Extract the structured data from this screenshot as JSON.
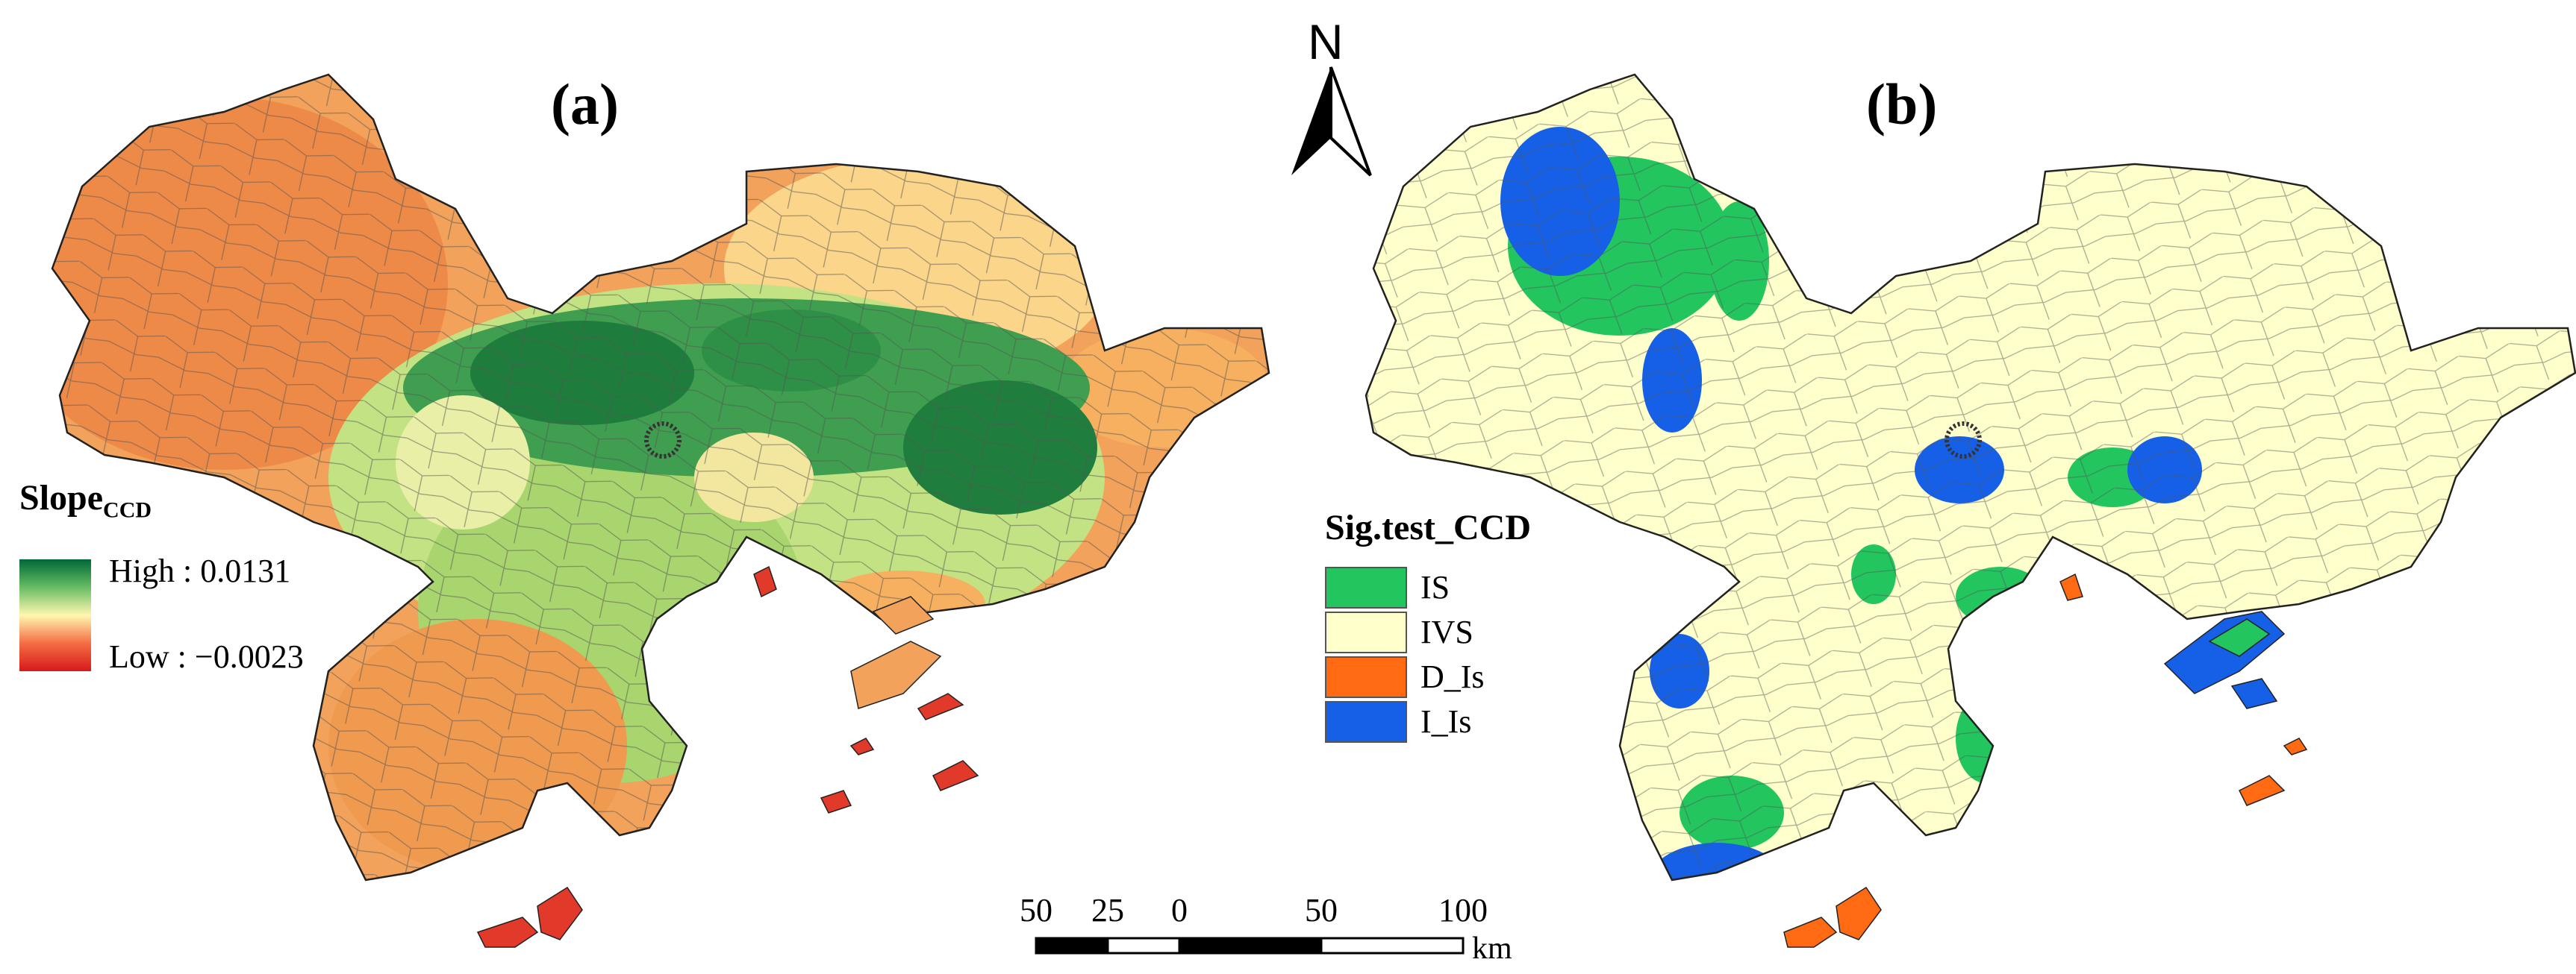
{
  "panels": [
    {
      "label": "(a)"
    },
    {
      "label": "(b)"
    }
  ],
  "north_arrow": {
    "label": "N"
  },
  "legend_a": {
    "title": "Slope",
    "title_subscript": "CCD",
    "high_label": "High : 0.0131",
    "low_label": "Low : −0.0023",
    "high_value": 0.0131,
    "low_value": -0.0023,
    "colors": [
      "#006837",
      "#66bd63",
      "#fee08b",
      "#f46d43",
      "#d7191c"
    ]
  },
  "legend_b": {
    "title": "Sig.test_CCD",
    "categories": [
      {
        "label": "IS",
        "color": "#22c55e"
      },
      {
        "label": "IVS",
        "color": "#ffffcc"
      },
      {
        "label": "D_Is",
        "color": "#ff6a13"
      },
      {
        "label": "I_Is",
        "color": "#1560e6"
      }
    ]
  },
  "scale_bar": {
    "ticks": [
      "50",
      "25",
      "0",
      "50",
      "100"
    ],
    "unit": "km"
  }
}
